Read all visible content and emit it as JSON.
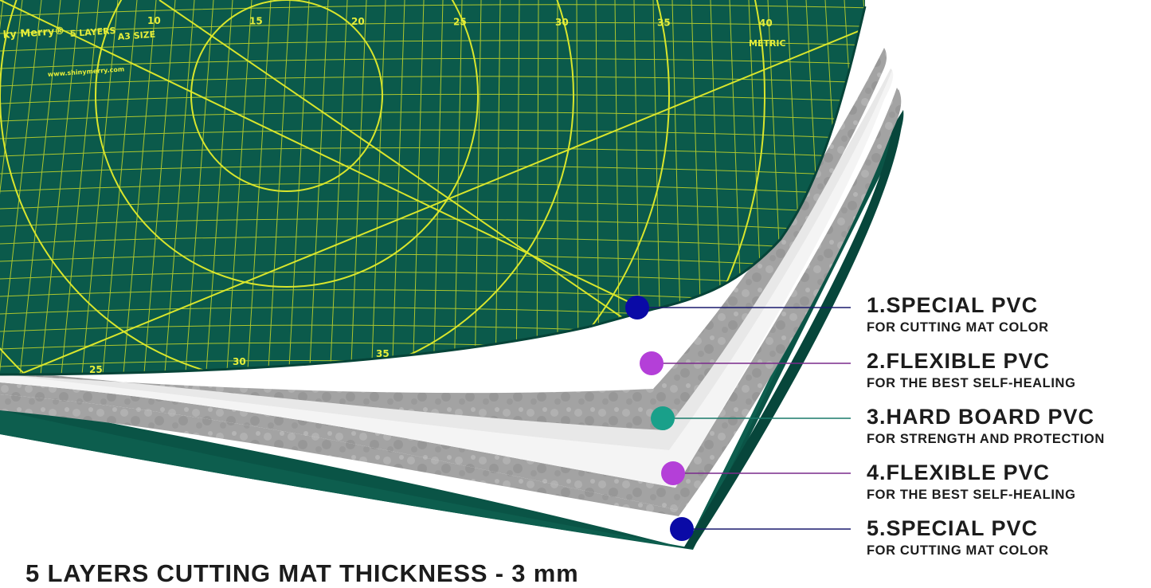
{
  "layers": [
    {
      "number": "1",
      "title": "1.SPECIAL PVC",
      "subtitle": "FOR CUTTING MAT COLOR",
      "dot_color": "#0a0aa6",
      "line_color": "#1a1a6e"
    },
    {
      "number": "2",
      "title": "2.FLEXIBLE PVC",
      "subtitle": "FOR THE BEST SELF-HEALING",
      "dot_color": "#b43fd8",
      "line_color": "#7a2a8c"
    },
    {
      "number": "3",
      "title": "3.HARD BOARD PVC",
      "subtitle": "FOR STRENGTH AND PROTECTION",
      "dot_color": "#19a08a",
      "line_color": "#1a7a6a"
    },
    {
      "number": "4",
      "title": "4.FLEXIBLE PVC",
      "subtitle": "FOR THE BEST SELF-HEALING",
      "dot_color": "#b43fd8",
      "line_color": "#7a2a8c"
    },
    {
      "number": "5",
      "title": "5.SPECIAL PVC",
      "subtitle": "FOR CUTTING MAT COLOR",
      "dot_color": "#0a0aa6",
      "line_color": "#1a1a6e"
    }
  ],
  "caption": "5 LAYERS CUTTING MAT THICKNESS - 3 mm",
  "mat_print": {
    "brand": "ky Merry®",
    "layers_text": "5 LAYERS",
    "size_text": "A3 SIZE",
    "metric_text": "METRIC",
    "website": "www.shinymerry.com",
    "top_ruler": [
      "10",
      "15",
      "20",
      "25",
      "30",
      "35",
      "40"
    ],
    "bottom_ruler": [
      "25",
      "30",
      "35"
    ]
  },
  "colors": {
    "mat_green": "#0b5a4b",
    "mat_green_dark": "#064438",
    "grid_yellow": "#d9e62c",
    "grey_layer": "#9a9a9a",
    "white_layer": "#f2f2f2",
    "text": "#1c1c1c"
  }
}
